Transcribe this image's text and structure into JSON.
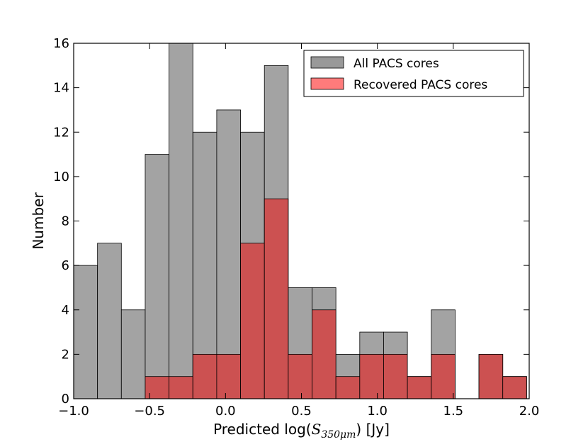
{
  "chart_data": {
    "type": "bar",
    "title": "",
    "xlabel": "Predicted log(",
    "xlabel_symbol": "S",
    "xlabel_subscript": "350μm",
    "xlabel_suffix": ") [Jy]",
    "ylabel": "Number",
    "xlim": [
      -1.0,
      2.0
    ],
    "ylim": [
      0,
      16
    ],
    "x_ticks": [
      -1.0,
      -0.5,
      0.0,
      0.5,
      1.0,
      1.5,
      2.0
    ],
    "x_tick_labels": [
      "−1.0",
      "−0.5",
      "0.0",
      "0.5",
      "1.0",
      "1.5",
      "2.0"
    ],
    "y_ticks": [
      0,
      2,
      4,
      6,
      8,
      10,
      12,
      14,
      16
    ],
    "y_tick_labels": [
      "0",
      "2",
      "4",
      "6",
      "8",
      "10",
      "12",
      "14",
      "16"
    ],
    "bin_edges": [
      -1.0,
      -0.843,
      -0.686,
      -0.529,
      -0.372,
      -0.215,
      -0.058,
      0.099,
      0.256,
      0.413,
      0.57,
      0.727,
      0.884,
      1.041,
      1.198,
      1.355,
      1.512,
      1.669,
      1.826,
      1.983
    ],
    "legend_position": "top-right",
    "series": [
      {
        "name": "All PACS cores",
        "color": "#999999",
        "values": [
          6,
          7,
          4,
          11,
          16,
          12,
          13,
          12,
          15,
          5,
          5,
          2,
          3,
          3,
          1,
          4,
          0,
          2,
          1
        ]
      },
      {
        "name": "Recovered PACS cores",
        "color": "#d04848",
        "values": [
          0,
          0,
          0,
          1,
          1,
          2,
          2,
          7,
          9,
          2,
          4,
          1,
          2,
          2,
          1,
          2,
          0,
          2,
          1
        ]
      }
    ]
  }
}
